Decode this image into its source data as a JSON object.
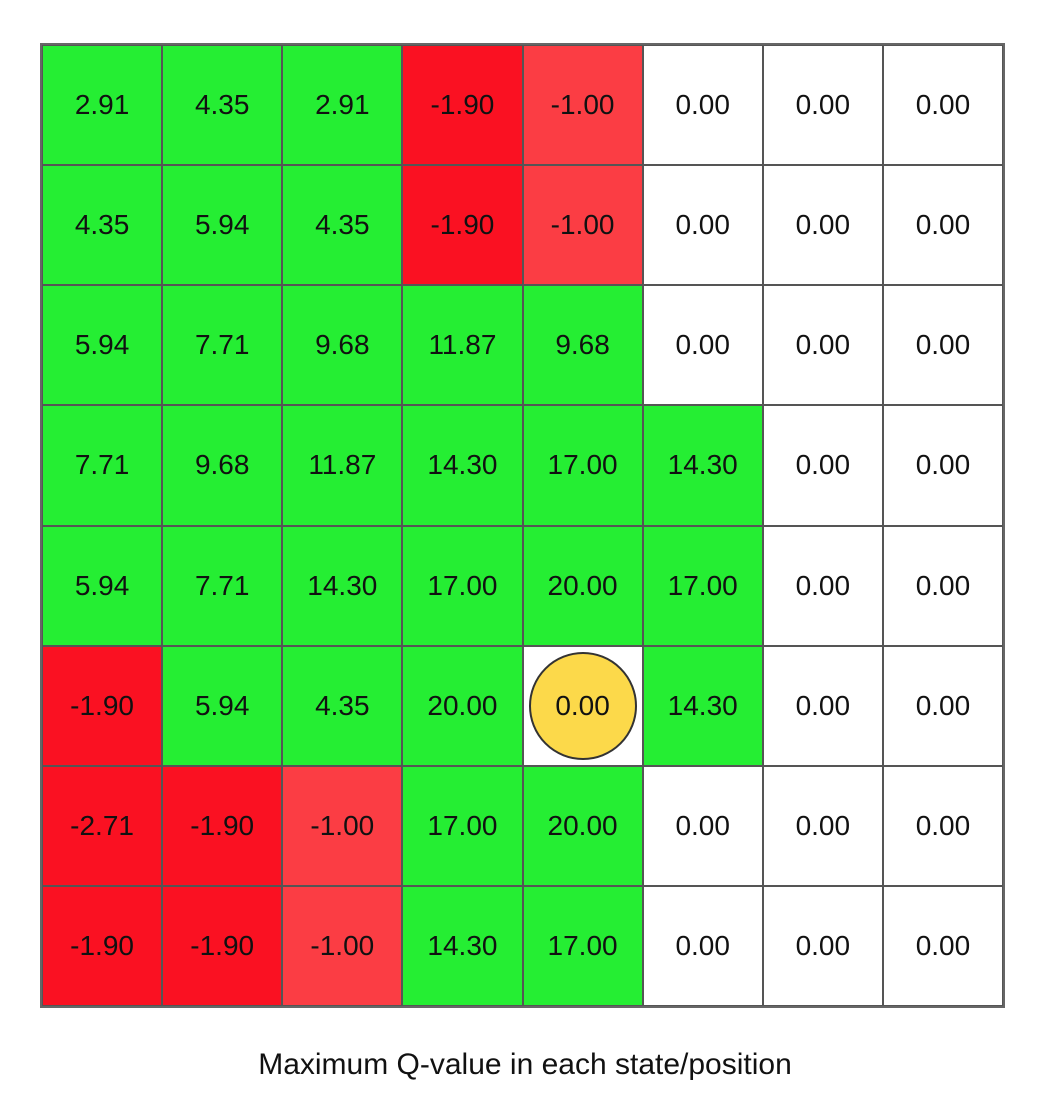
{
  "colors": {
    "positive": "#25ee33",
    "strong_negative": "#fa1122",
    "weak_negative": "#fb3d44",
    "neutral": "#ffffff",
    "agent": "#fcd94a"
  },
  "grid": {
    "rows": [
      [
        "2.91",
        "4.35",
        "2.91",
        "-1.90",
        "-1.00",
        "0.00",
        "0.00",
        "0.00"
      ],
      [
        "4.35",
        "5.94",
        "4.35",
        "-1.90",
        "-1.00",
        "0.00",
        "0.00",
        "0.00"
      ],
      [
        "5.94",
        "7.71",
        "9.68",
        "11.87",
        "9.68",
        "0.00",
        "0.00",
        "0.00"
      ],
      [
        "7.71",
        "9.68",
        "11.87",
        "14.30",
        "17.00",
        "14.30",
        "0.00",
        "0.00"
      ],
      [
        "5.94",
        "7.71",
        "14.30",
        "17.00",
        "20.00",
        "17.00",
        "0.00",
        "0.00"
      ],
      [
        "-1.90",
        "5.94",
        "4.35",
        "20.00",
        "0.00",
        "14.30",
        "0.00",
        "0.00"
      ],
      [
        "-2.71",
        "-1.90",
        "-1.00",
        "17.00",
        "20.00",
        "0.00",
        "0.00",
        "0.00"
      ],
      [
        "-1.90",
        "-1.90",
        "-1.00",
        "14.30",
        "17.00",
        "0.00",
        "0.00",
        "0.00"
      ]
    ],
    "visited": [
      [
        1,
        1,
        1,
        1,
        1,
        0,
        0,
        0
      ],
      [
        1,
        1,
        1,
        1,
        1,
        0,
        0,
        0
      ],
      [
        1,
        1,
        1,
        1,
        1,
        0,
        0,
        0
      ],
      [
        1,
        1,
        1,
        1,
        1,
        1,
        0,
        0
      ],
      [
        1,
        1,
        1,
        1,
        1,
        1,
        0,
        0
      ],
      [
        1,
        1,
        1,
        1,
        0,
        1,
        0,
        0
      ],
      [
        1,
        1,
        1,
        1,
        1,
        0,
        0,
        0
      ],
      [
        1,
        1,
        1,
        1,
        1,
        0,
        0,
        0
      ]
    ],
    "agent_row": 5,
    "agent_col": 4
  },
  "caption": "Maximum Q-value in each state/position"
}
